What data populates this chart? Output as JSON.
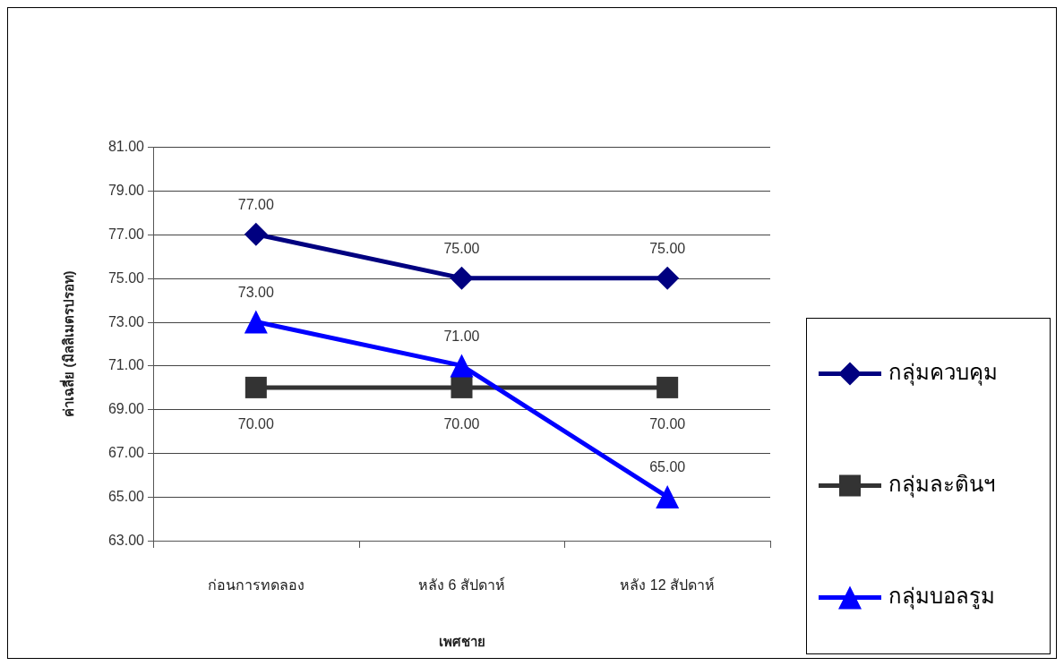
{
  "chart_data": {
    "type": "line",
    "xlabel": "เพศชาย",
    "ylabel": "ค่าเฉลี่ย (มิลลิเมตรปรอท)",
    "categories": [
      "ก่อนการทดลอง",
      "หลัง 6 สัปดาห์",
      "หลัง 12 สัปดาห์"
    ],
    "series": [
      {
        "name": "กลุ่มควบคุม",
        "color": "#000080",
        "marker": "diamond",
        "values": [
          77,
          75,
          75
        ],
        "value_labels": [
          "77.00",
          "75.00",
          "75.00"
        ]
      },
      {
        "name": "กลุ่มละตินฯ",
        "color": "#333333",
        "marker": "square",
        "values": [
          70,
          70,
          70
        ],
        "value_labels": [
          "70.00",
          "70.00",
          "70.00"
        ]
      },
      {
        "name": "กลุ่มบอลรูม",
        "color": "#0000ff",
        "marker": "triangle",
        "values": [
          73,
          71,
          65
        ],
        "value_labels": [
          "73.00",
          "71.00",
          "65.00"
        ]
      }
    ],
    "ylim": [
      63,
      81
    ],
    "yticks": [
      {
        "value": 63,
        "label": "63.00"
      },
      {
        "value": 65,
        "label": "65.00"
      },
      {
        "value": 67,
        "label": "67.00"
      },
      {
        "value": 69,
        "label": "69.00"
      },
      {
        "value": 71,
        "label": "71.00"
      },
      {
        "value": 73,
        "label": "73.00"
      },
      {
        "value": 75,
        "label": "75.00"
      },
      {
        "value": 77,
        "label": "77.00"
      },
      {
        "value": 79,
        "label": "79.00"
      },
      {
        "value": 81,
        "label": "81.00"
      }
    ],
    "grid": "y",
    "legend": "right"
  }
}
